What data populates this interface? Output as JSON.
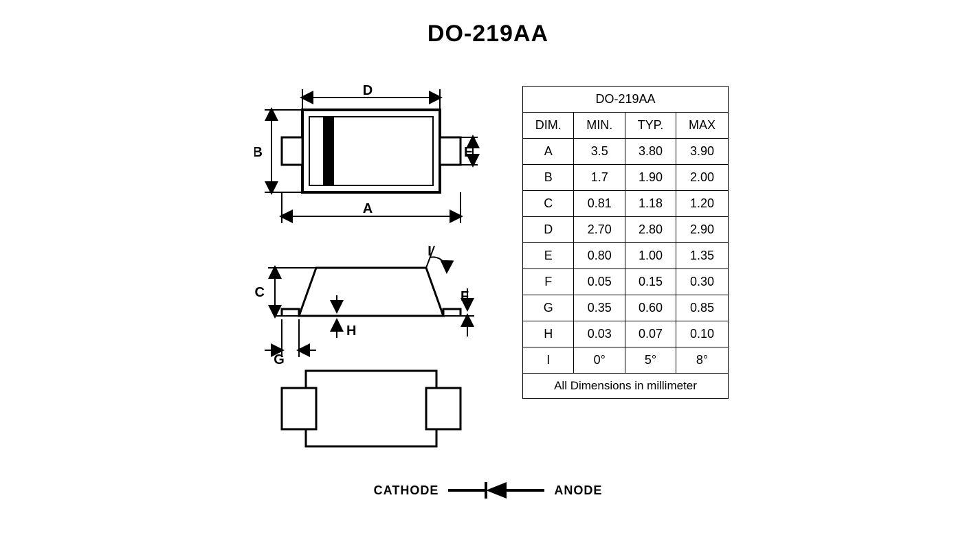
{
  "title": "DO-219AA",
  "table": {
    "title": "DO-219AA",
    "columns": [
      "DIM.",
      "MIN.",
      "TYP.",
      "MAX"
    ],
    "rows": [
      [
        "A",
        "3.5",
        "3.80",
        "3.90"
      ],
      [
        "B",
        "1.7",
        "1.90",
        "2.00"
      ],
      [
        "C",
        "0.81",
        "1.18",
        "1.20"
      ],
      [
        "D",
        "2.70",
        "2.80",
        "2.90"
      ],
      [
        "E",
        "0.80",
        "1.00",
        "1.35"
      ],
      [
        "F",
        "0.05",
        "0.15",
        "0.30"
      ],
      [
        "G",
        "0.35",
        "0.60",
        "0.85"
      ],
      [
        "H",
        "0.03",
        "0.07",
        "0.10"
      ],
      [
        "I",
        "0°",
        "5°",
        "8°"
      ]
    ],
    "footer": "All Dimensions in millimeter"
  },
  "legend": {
    "cathode": "CATHODE",
    "anode": "ANODE"
  },
  "diagram": {
    "labels": {
      "A": "A",
      "B": "B",
      "C": "C",
      "D": "D",
      "E": "E",
      "F": "F",
      "G": "G",
      "H": "H",
      "I": "I"
    },
    "style": {
      "stroke": "#000000",
      "stroke_width_main": 3,
      "stroke_width_dim": 2,
      "fill_body": "#ffffff",
      "cathode_band_width": 16
    }
  },
  "colors": {
    "text": "#000000",
    "background": "#ffffff",
    "border": "#000000"
  }
}
